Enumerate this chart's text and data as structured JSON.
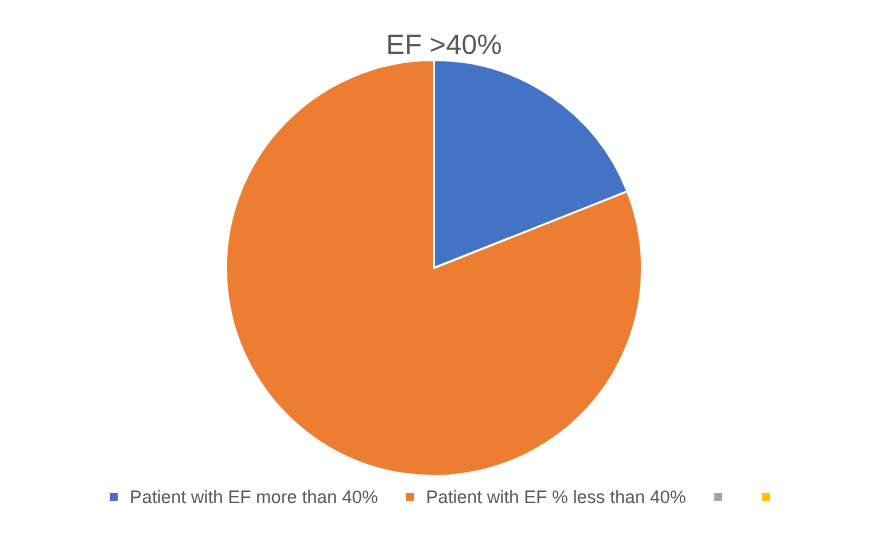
{
  "chart_data": {
    "type": "pie",
    "title": "EF >40%",
    "categories": [
      "Patient with EF more than 40%",
      "Patient with EF % less than 40%",
      null,
      null
    ],
    "values": [
      19,
      81,
      0,
      0
    ],
    "colors": [
      "#4472c4",
      "#ed7d31",
      "#a5a5a5",
      "#ffc000"
    ],
    "legend": "bottom"
  }
}
